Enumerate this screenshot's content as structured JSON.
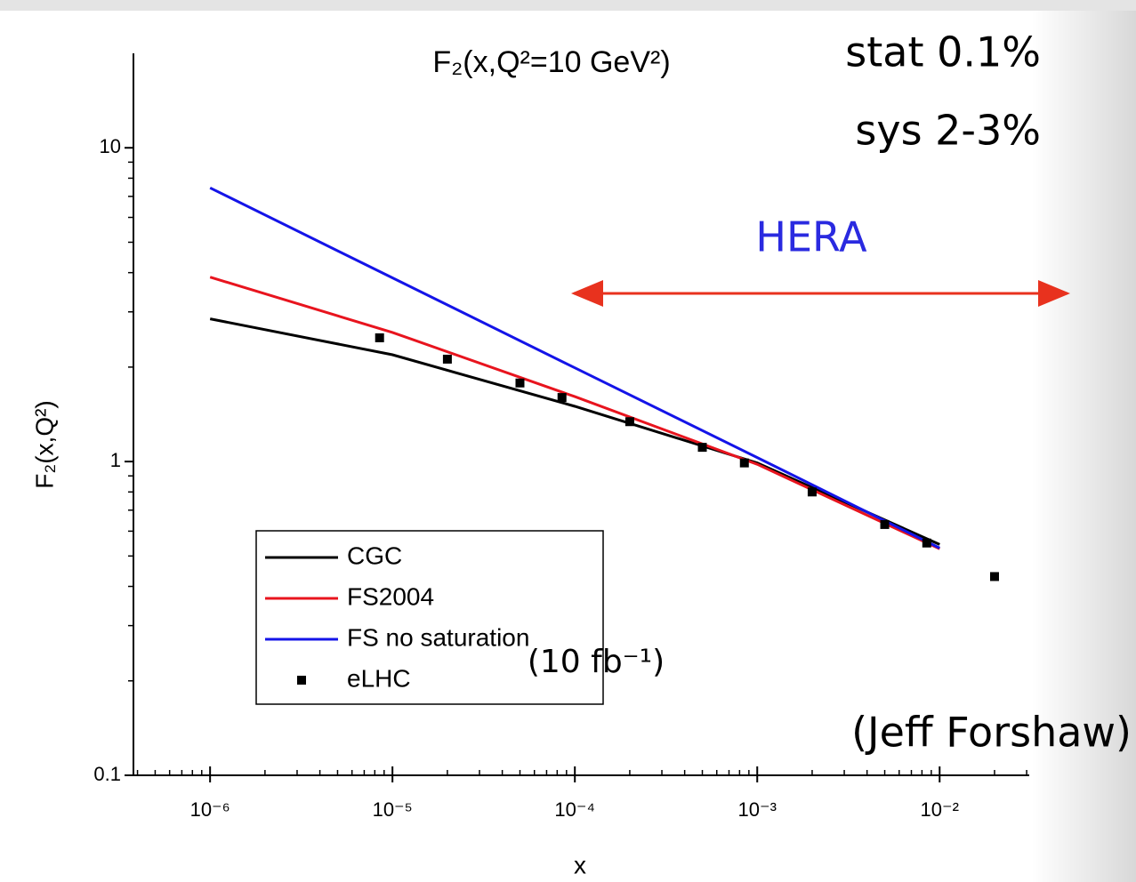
{
  "chart_data": {
    "type": "line",
    "title": "F₂(x,Q²=10 GeV²)",
    "x_label": "x",
    "y_label": "F₂(x,Q²)",
    "annotations": [
      "stat 0.1%",
      "sys 2-3%",
      "HERA",
      "(10 fb⁻¹)",
      "(Jeff Forshaw)"
    ],
    "log_x": true,
    "log_y": true,
    "xlim": [
      3.8e-07,
      0.031
    ],
    "ylim": [
      0.1,
      20
    ],
    "xticks": [
      {
        "value": 1e-06,
        "label": "10⁻⁶"
      },
      {
        "value": 1e-05,
        "label": "10⁻⁵"
      },
      {
        "value": 0.0001,
        "label": "10⁻⁴"
      },
      {
        "value": 0.001,
        "label": "10⁻³"
      },
      {
        "value": 0.01,
        "label": "10⁻²"
      }
    ],
    "yticks": [
      0.1,
      1,
      10
    ],
    "series": [
      {
        "name": "CGC",
        "color": "#000000",
        "mode": "line",
        "x": [
          1e-06,
          1e-05,
          0.0001,
          0.001,
          0.01
        ],
        "values": [
          2.85,
          2.19,
          1.5,
          0.99,
          0.544
        ]
      },
      {
        "name": "FS2004",
        "color": "#e8141e",
        "mode": "line",
        "x": [
          1e-06,
          1e-05,
          0.0001,
          0.001,
          0.01
        ],
        "values": [
          3.87,
          2.58,
          1.61,
          0.98,
          0.527
        ]
      },
      {
        "name": "FS no saturation",
        "color": "#1414e8",
        "mode": "line",
        "x": [
          1e-06,
          1e-05,
          0.0001,
          0.001,
          0.01
        ],
        "values": [
          7.45,
          3.85,
          1.99,
          1.03,
          0.53
        ]
      },
      {
        "name": "eLHC",
        "color": "#000000",
        "mode": "markers",
        "x": [
          8.5e-06,
          2e-05,
          5e-05,
          8.5e-05,
          0.0002,
          0.0005,
          0.00085,
          0.002,
          0.005,
          0.0085,
          0.02
        ],
        "values": [
          2.48,
          2.12,
          1.78,
          1.6,
          1.34,
          1.11,
          0.99,
          0.8,
          0.63,
          0.55,
          0.43
        ]
      }
    ]
  }
}
